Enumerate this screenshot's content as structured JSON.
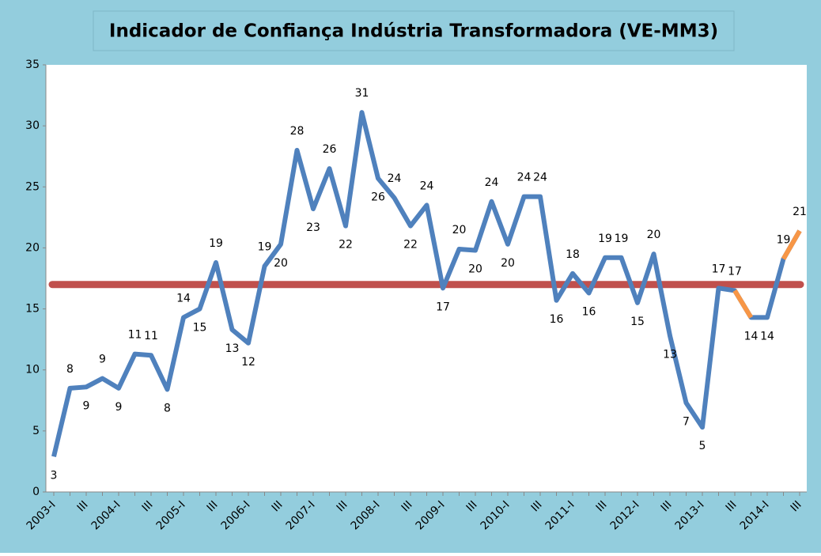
{
  "chart_data": {
    "type": "line",
    "title": "Indicador de Confiança Indústria Transformadora (VE-MM3)",
    "categories": [
      "2003-I",
      null,
      "III",
      null,
      "2004-I",
      null,
      "III",
      null,
      "2005-I",
      null,
      "III",
      null,
      "2006-I",
      null,
      "III",
      null,
      "2007-I",
      null,
      "III",
      null,
      "2008-I",
      null,
      "III",
      null,
      "2009-I",
      null,
      "III",
      null,
      "2010-I",
      null,
      "III",
      null,
      "2011-I",
      null,
      "III",
      null,
      "2012-I",
      null,
      "III",
      null,
      "2013-I",
      null,
      "III",
      null,
      "2014-I",
      null,
      "III"
    ],
    "series": [
      {
        "color": "#4f81bd",
        "values": [
          2.9,
          8.5,
          8.6,
          9.3,
          8.5,
          11.3,
          11.2,
          8.4,
          14.3,
          15.0,
          18.8,
          13.3,
          12.2,
          18.5,
          20.3,
          28.0,
          23.2,
          26.5,
          21.8,
          31.1,
          25.7,
          24.1,
          21.8,
          23.5,
          16.7,
          19.9,
          19.8,
          23.8,
          20.3,
          24.2,
          24.2,
          15.7,
          17.9,
          16.3,
          19.2,
          19.2,
          15.5,
          19.5,
          12.8,
          7.3,
          5.3,
          16.7,
          16.5,
          14.3,
          14.3,
          19.1,
          21.4
        ],
        "value_labels": [
          "3",
          "8",
          "9",
          "9",
          "9",
          "11",
          "11",
          "8",
          "14",
          "15",
          "19",
          "13",
          "12",
          "19",
          "20",
          "28",
          "23",
          "26",
          "22",
          "31",
          "26",
          "24",
          "22",
          "24",
          "17",
          "20",
          "20",
          "24",
          "20",
          "24",
          "24",
          "16",
          "18",
          "16",
          "19",
          "19",
          "15",
          "20",
          "13",
          "7",
          "5",
          "17",
          "17",
          "14",
          "14",
          "19",
          "21"
        ]
      },
      {
        "color": "#f79646",
        "values": [
          null,
          null,
          null,
          null,
          null,
          null,
          null,
          null,
          null,
          null,
          null,
          null,
          null,
          null,
          null,
          null,
          null,
          null,
          null,
          null,
          null,
          null,
          null,
          null,
          null,
          null,
          null,
          null,
          null,
          null,
          null,
          null,
          null,
          null,
          null,
          null,
          null,
          null,
          null,
          null,
          null,
          null,
          16.5,
          14.3,
          null,
          19.1,
          21.4
        ]
      }
    ],
    "reference_line": {
      "value": 17,
      "color": "#c0504d"
    },
    "ylim": [
      0,
      35
    ],
    "yticks": [
      0,
      5,
      10,
      15,
      20,
      25,
      30,
      35
    ],
    "grid": false
  }
}
